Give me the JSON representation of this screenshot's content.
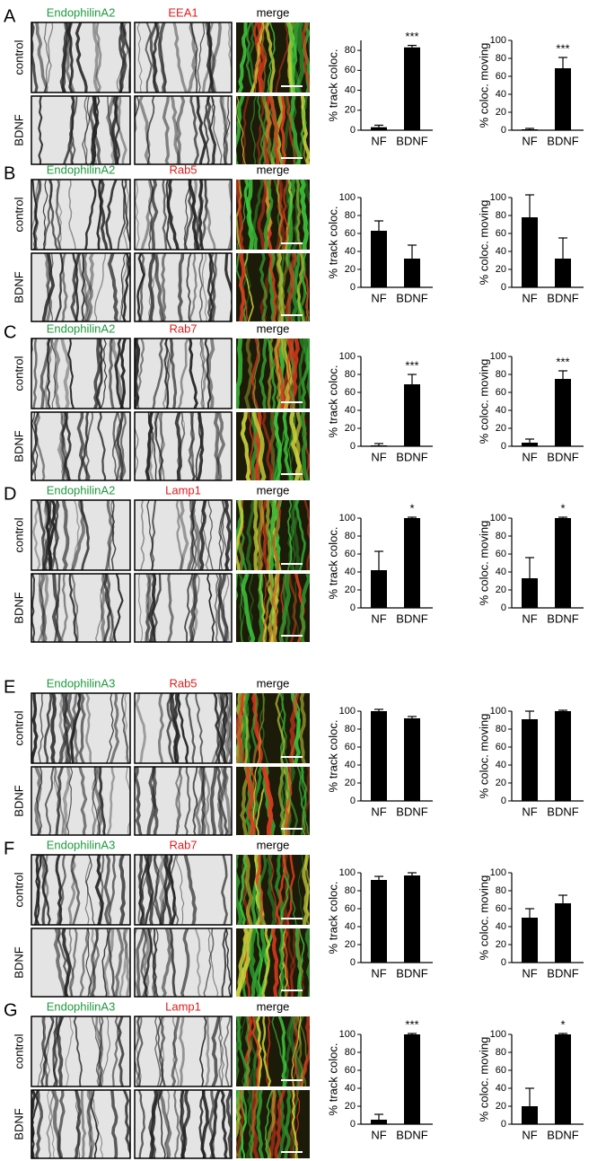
{
  "panels": [
    {
      "label": "A",
      "columns": [
        "EndophilinA2",
        "EEA1",
        "merge"
      ],
      "rows": [
        "control",
        "BDNF"
      ]
    },
    {
      "label": "B",
      "columns": [
        "EndophilinA2",
        "Rab5",
        "merge"
      ],
      "rows": [
        "control",
        "BDNF"
      ]
    },
    {
      "label": "C",
      "columns": [
        "EndophilinA2",
        "Rab7",
        "merge"
      ],
      "rows": [
        "control",
        "BDNF"
      ]
    },
    {
      "label": "D",
      "columns": [
        "EndophilinA2",
        "Lamp1",
        "merge"
      ],
      "rows": [
        "control",
        "BDNF"
      ]
    },
    {
      "label": "E",
      "columns": [
        "EndophilinA3",
        "Rab5",
        "merge"
      ],
      "rows": [
        "control",
        "BDNF"
      ]
    },
    {
      "label": "F",
      "columns": [
        "EndophilinA3",
        "Rab7",
        "merge"
      ],
      "rows": [
        "control",
        "BDNF"
      ]
    },
    {
      "label": "G",
      "columns": [
        "EndophilinA3",
        "Lamp1",
        "merge"
      ],
      "rows": [
        "control",
        "BDNF"
      ]
    }
  ],
  "chart_data": [
    {
      "type": "bar",
      "ylabel": "% track coloc.",
      "categories": [
        "NF",
        "BDNF"
      ],
      "values": [
        3,
        83
      ],
      "errors": [
        2,
        2
      ],
      "significance": [
        null,
        "***"
      ],
      "ylim": [
        0,
        90
      ],
      "yticks": [
        0,
        20,
        40,
        60,
        80
      ],
      "color": "#000000"
    },
    {
      "type": "bar",
      "ylabel": "% coloc. moving",
      "categories": [
        "NF",
        "BDNF"
      ],
      "values": [
        1,
        69
      ],
      "errors": [
        1,
        12
      ],
      "significance": [
        null,
        "***"
      ],
      "ylim": [
        0,
        100
      ],
      "yticks": [
        0,
        20,
        40,
        60,
        80,
        100
      ],
      "color": "#000000"
    },
    {
      "type": "bar",
      "ylabel": "% track coloc.",
      "categories": [
        "NF",
        "BDNF"
      ],
      "values": [
        63,
        32
      ],
      "errors": [
        11,
        15
      ],
      "significance": [
        null,
        null
      ],
      "ylim": [
        0,
        100
      ],
      "yticks": [
        0,
        20,
        40,
        60,
        80,
        100
      ],
      "color": "#000000"
    },
    {
      "type": "bar",
      "ylabel": "% coloc. moving",
      "categories": [
        "NF",
        "BDNF"
      ],
      "values": [
        78,
        32
      ],
      "errors": [
        25,
        23
      ],
      "significance": [
        null,
        null
      ],
      "ylim": [
        0,
        100
      ],
      "yticks": [
        0,
        20,
        40,
        60,
        80,
        100
      ],
      "color": "#000000"
    },
    {
      "type": "bar",
      "ylabel": "% track coloc.",
      "categories": [
        "NF",
        "BDNF"
      ],
      "values": [
        1,
        69
      ],
      "errors": [
        2,
        11
      ],
      "significance": [
        null,
        "***"
      ],
      "ylim": [
        0,
        100
      ],
      "yticks": [
        0,
        20,
        40,
        60,
        80,
        100
      ],
      "color": "#000000"
    },
    {
      "type": "bar",
      "ylabel": "% coloc. moving",
      "categories": [
        "NF",
        "BDNF"
      ],
      "values": [
        4,
        75
      ],
      "errors": [
        4,
        9
      ],
      "significance": [
        null,
        "***"
      ],
      "ylim": [
        0,
        100
      ],
      "yticks": [
        0,
        20,
        40,
        60,
        80,
        100
      ],
      "color": "#000000"
    },
    {
      "type": "bar",
      "ylabel": "% track coloc.",
      "categories": [
        "NF",
        "BDNF"
      ],
      "values": [
        42,
        100
      ],
      "errors": [
        21,
        1
      ],
      "significance": [
        null,
        "*"
      ],
      "ylim": [
        0,
        100
      ],
      "yticks": [
        0,
        20,
        40,
        60,
        80,
        100
      ],
      "color": "#000000"
    },
    {
      "type": "bar",
      "ylabel": "% coloc. moving",
      "categories": [
        "NF",
        "BDNF"
      ],
      "values": [
        33,
        100
      ],
      "errors": [
        23,
        1
      ],
      "significance": [
        null,
        "*"
      ],
      "ylim": [
        0,
        100
      ],
      "yticks": [
        0,
        20,
        40,
        60,
        80,
        100
      ],
      "color": "#000000"
    },
    {
      "type": "bar",
      "ylabel": "% track coloc.",
      "categories": [
        "NF",
        "BDNF"
      ],
      "values": [
        100,
        92
      ],
      "errors": [
        2,
        2
      ],
      "significance": [
        null,
        null
      ],
      "ylim": [
        0,
        100
      ],
      "yticks": [
        0,
        20,
        40,
        60,
        80,
        100
      ],
      "color": "#000000"
    },
    {
      "type": "bar",
      "ylabel": "% coloc. moving",
      "categories": [
        "NF",
        "BDNF"
      ],
      "values": [
        91,
        100
      ],
      "errors": [
        9,
        1
      ],
      "significance": [
        null,
        null
      ],
      "ylim": [
        0,
        100
      ],
      "yticks": [
        0,
        20,
        40,
        60,
        80,
        100
      ],
      "color": "#000000"
    },
    {
      "type": "bar",
      "ylabel": "% track coloc.",
      "categories": [
        "NF",
        "BDNF"
      ],
      "values": [
        92,
        97
      ],
      "errors": [
        4,
        3
      ],
      "significance": [
        null,
        null
      ],
      "ylim": [
        0,
        100
      ],
      "yticks": [
        0,
        20,
        40,
        60,
        80,
        100
      ],
      "color": "#000000"
    },
    {
      "type": "bar",
      "ylabel": "% coloc. moving",
      "categories": [
        "NF",
        "BDNF"
      ],
      "values": [
        50,
        66
      ],
      "errors": [
        10,
        9
      ],
      "significance": [
        null,
        null
      ],
      "ylim": [
        0,
        100
      ],
      "yticks": [
        0,
        20,
        40,
        60,
        80,
        100
      ],
      "color": "#000000"
    },
    {
      "type": "bar",
      "ylabel": "% track coloc.",
      "categories": [
        "NF",
        "BDNF"
      ],
      "values": [
        5,
        100
      ],
      "errors": [
        6,
        1
      ],
      "significance": [
        null,
        "***"
      ],
      "ylim": [
        0,
        100
      ],
      "yticks": [
        0,
        20,
        40,
        60,
        80,
        100
      ],
      "color": "#000000"
    },
    {
      "type": "bar",
      "ylabel": "% coloc. moving",
      "categories": [
        "NF",
        "BDNF"
      ],
      "values": [
        20,
        100
      ],
      "errors": [
        20,
        1
      ],
      "significance": [
        null,
        "*"
      ],
      "ylim": [
        0,
        100
      ],
      "yticks": [
        0,
        20,
        40,
        60,
        80,
        100
      ],
      "color": "#000000"
    }
  ]
}
